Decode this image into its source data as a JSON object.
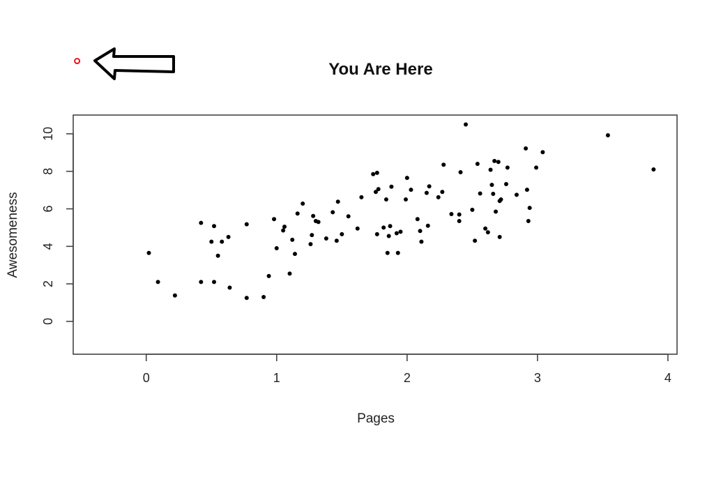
{
  "chart_data": {
    "type": "scatter",
    "title": "You Are Here",
    "xlabel": "Pages",
    "ylabel": "Awesomeness",
    "xlim": [
      -0.56,
      4.07
    ],
    "ylim": [
      -1.75,
      11.0
    ],
    "xticks": [
      0,
      1,
      2,
      3,
      4
    ],
    "yticks": [
      0,
      2,
      4,
      6,
      8,
      10
    ],
    "grid": false,
    "legend": "none",
    "point_color": "#000000",
    "marker_color": "#e8141c",
    "marker": {
      "x": -0.53,
      "y": 13.88
    },
    "points": [
      {
        "x": 0.02,
        "y": 3.65
      },
      {
        "x": 0.09,
        "y": 2.1
      },
      {
        "x": 0.22,
        "y": 1.38
      },
      {
        "x": 0.42,
        "y": 5.25
      },
      {
        "x": 0.42,
        "y": 2.1
      },
      {
        "x": 0.5,
        "y": 4.25
      },
      {
        "x": 0.52,
        "y": 5.08
      },
      {
        "x": 0.52,
        "y": 2.1
      },
      {
        "x": 0.55,
        "y": 3.5
      },
      {
        "x": 0.58,
        "y": 4.25
      },
      {
        "x": 0.63,
        "y": 4.5
      },
      {
        "x": 0.64,
        "y": 1.8
      },
      {
        "x": 0.77,
        "y": 5.18
      },
      {
        "x": 0.77,
        "y": 1.25
      },
      {
        "x": 0.9,
        "y": 1.3
      },
      {
        "x": 0.94,
        "y": 2.42
      },
      {
        "x": 0.98,
        "y": 5.45
      },
      {
        "x": 1.0,
        "y": 3.9
      },
      {
        "x": 1.05,
        "y": 4.85
      },
      {
        "x": 1.06,
        "y": 5.05
      },
      {
        "x": 1.1,
        "y": 2.55
      },
      {
        "x": 1.12,
        "y": 4.35
      },
      {
        "x": 1.14,
        "y": 3.6
      },
      {
        "x": 1.16,
        "y": 5.75
      },
      {
        "x": 1.2,
        "y": 6.28
      },
      {
        "x": 1.26,
        "y": 4.12
      },
      {
        "x": 1.27,
        "y": 4.6
      },
      {
        "x": 1.28,
        "y": 5.62
      },
      {
        "x": 1.3,
        "y": 5.35
      },
      {
        "x": 1.32,
        "y": 5.3
      },
      {
        "x": 1.38,
        "y": 4.42
      },
      {
        "x": 1.43,
        "y": 5.82
      },
      {
        "x": 1.46,
        "y": 4.3
      },
      {
        "x": 1.47,
        "y": 6.38
      },
      {
        "x": 1.5,
        "y": 4.65
      },
      {
        "x": 1.55,
        "y": 5.6
      },
      {
        "x": 1.62,
        "y": 4.95
      },
      {
        "x": 1.65,
        "y": 6.62
      },
      {
        "x": 1.74,
        "y": 7.85
      },
      {
        "x": 1.76,
        "y": 6.9
      },
      {
        "x": 1.77,
        "y": 7.92
      },
      {
        "x": 1.77,
        "y": 4.65
      },
      {
        "x": 1.78,
        "y": 7.05
      },
      {
        "x": 1.82,
        "y": 5.0
      },
      {
        "x": 1.84,
        "y": 6.5
      },
      {
        "x": 1.85,
        "y": 3.65
      },
      {
        "x": 1.86,
        "y": 4.55
      },
      {
        "x": 1.87,
        "y": 5.08
      },
      {
        "x": 1.88,
        "y": 7.18
      },
      {
        "x": 1.92,
        "y": 4.7
      },
      {
        "x": 1.93,
        "y": 3.65
      },
      {
        "x": 1.95,
        "y": 4.78
      },
      {
        "x": 1.99,
        "y": 6.5
      },
      {
        "x": 2.0,
        "y": 7.65
      },
      {
        "x": 2.03,
        "y": 7.02
      },
      {
        "x": 2.08,
        "y": 5.45
      },
      {
        "x": 2.1,
        "y": 4.82
      },
      {
        "x": 2.11,
        "y": 4.25
      },
      {
        "x": 2.15,
        "y": 6.85
      },
      {
        "x": 2.16,
        "y": 5.1
      },
      {
        "x": 2.17,
        "y": 7.2
      },
      {
        "x": 2.24,
        "y": 6.62
      },
      {
        "x": 2.27,
        "y": 6.9
      },
      {
        "x": 2.28,
        "y": 8.35
      },
      {
        "x": 2.34,
        "y": 5.72
      },
      {
        "x": 2.4,
        "y": 5.7
      },
      {
        "x": 2.4,
        "y": 5.35
      },
      {
        "x": 2.41,
        "y": 7.95
      },
      {
        "x": 2.45,
        "y": 10.5
      },
      {
        "x": 2.5,
        "y": 5.95
      },
      {
        "x": 2.52,
        "y": 4.3
      },
      {
        "x": 2.54,
        "y": 8.4
      },
      {
        "x": 2.56,
        "y": 6.82
      },
      {
        "x": 2.6,
        "y": 4.95
      },
      {
        "x": 2.62,
        "y": 4.75
      },
      {
        "x": 2.64,
        "y": 8.08
      },
      {
        "x": 2.65,
        "y": 7.28
      },
      {
        "x": 2.66,
        "y": 6.8
      },
      {
        "x": 2.67,
        "y": 8.55
      },
      {
        "x": 2.68,
        "y": 5.85
      },
      {
        "x": 2.7,
        "y": 8.5
      },
      {
        "x": 2.71,
        "y": 6.42
      },
      {
        "x": 2.71,
        "y": 4.5
      },
      {
        "x": 2.72,
        "y": 6.5
      },
      {
        "x": 2.76,
        "y": 7.32
      },
      {
        "x": 2.77,
        "y": 8.2
      },
      {
        "x": 2.84,
        "y": 6.75
      },
      {
        "x": 2.91,
        "y": 9.22
      },
      {
        "x": 2.92,
        "y": 7.02
      },
      {
        "x": 2.93,
        "y": 5.35
      },
      {
        "x": 2.94,
        "y": 6.05
      },
      {
        "x": 2.99,
        "y": 8.2
      },
      {
        "x": 3.04,
        "y": 9.02
      },
      {
        "x": 3.54,
        "y": 9.92
      },
      {
        "x": 3.89,
        "y": 8.1
      }
    ]
  }
}
